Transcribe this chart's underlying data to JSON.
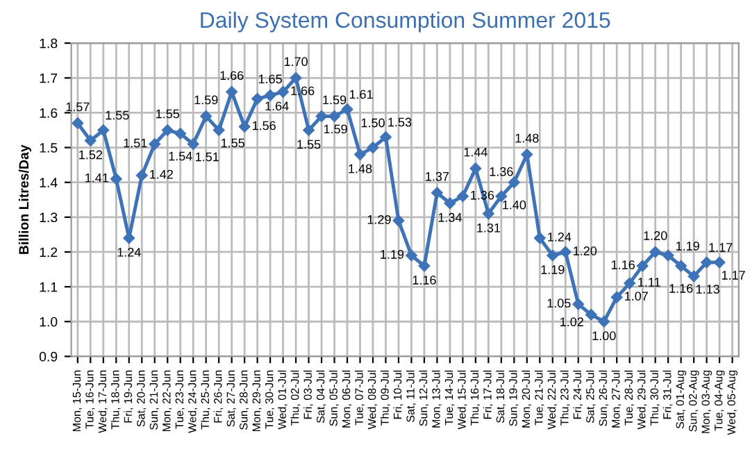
{
  "chart_data": {
    "type": "line",
    "title": "Daily System Consumption Summer 2015",
    "ylabel": "Billion Litres/Day",
    "categories": [
      "Mon, 15-Jun",
      "Tue, 16-Jun",
      "Wed, 17-Jun",
      "Thu, 18-Jun",
      "Fri, 19-Jun",
      "Sat, 20-Jun",
      "Sun, 21-Jun",
      "Mon, 22-Jun",
      "Tue, 23-Jun",
      "Wed, 24-Jun",
      "Thu, 25-Jun",
      "Fri, 26-Jun",
      "Sat, 27-Jun",
      "Sun, 28-Jun",
      "Mon, 29-Jun",
      "Tue, 30-Jun",
      "Wed, 01-Jul",
      "Thu, 02-Jul",
      "Fri, 03-Jul",
      "Sat, 04-Jul",
      "Sun, 05-Jul",
      "Mon, 06-Jul",
      "Tue, 07-Jul",
      "Wed, 08-Jul",
      "Thu, 09-Jul",
      "Fri, 10-Jul",
      "Sat, 11-Jul",
      "Sun, 12-Jul",
      "Mon, 13-Jul",
      "Tue, 14-Jul",
      "Wed, 15-Jul",
      "Thu, 16-Jul",
      "Fri, 17-Jul",
      "Sat, 18-Jul",
      "Sun, 19-Jul",
      "Mon, 20-Jul",
      "Tue, 21-Jul",
      "Wed, 22-Jul",
      "Thu, 23-Jul",
      "Fri, 24-Jul",
      "Sat, 25-Jul",
      "Sun, 26-Jul",
      "Mon, 27-Jul",
      "Tue, 28-Jul",
      "Wed, 29-Jul",
      "Thu, 30-Jul",
      "Fri, 31-Jul",
      "Sat, 01-Aug",
      "Sun, 02-Aug",
      "Mon, 03-Aug",
      "Tue, 04-Aug",
      "Wed, 05-Aug"
    ],
    "series": [
      {
        "color": "#3f73b8",
        "values": [
          1.57,
          1.52,
          1.55,
          1.41,
          1.24,
          1.42,
          1.51,
          1.55,
          1.54,
          1.51,
          1.59,
          1.55,
          1.66,
          1.56,
          1.64,
          1.65,
          1.66,
          1.7,
          1.55,
          1.59,
          1.59,
          1.61,
          1.48,
          1.5,
          1.53,
          1.29,
          1.19,
          1.16,
          1.37,
          1.34,
          1.36,
          1.44,
          1.31,
          1.36,
          1.4,
          1.48,
          1.24,
          1.19,
          1.2,
          1.05,
          1.02,
          1.0,
          1.07,
          1.11,
          1.16,
          1.2,
          1.19,
          1.16,
          1.13,
          1.17,
          1.17,
          null
        ],
        "value_labels": [
          "1.57",
          "1.52",
          "1.55",
          "1.41",
          "1.24",
          "1.42",
          "1.51",
          "1.55",
          "1.54",
          "1.51",
          "1.59",
          "1.55",
          "1.66",
          "1.56",
          "1.64",
          "1.65",
          "1.66",
          "1.70",
          "1.55",
          "1.59",
          "1.59",
          "1.61",
          "1.48",
          "1.50",
          "1.53",
          "1.29",
          "1.19",
          "1.16",
          "1.37",
          "1.34",
          "1.36",
          "1.44",
          "1.31",
          "1.36",
          "1.40",
          "1.48",
          "1.24",
          "1.19",
          "1.20",
          "1.05",
          "1.02",
          "1.00",
          "1.07",
          "1.11",
          "1.16",
          "1.20",
          "1.19",
          "1.16",
          "1.13",
          "1.17",
          "1.17",
          null
        ]
      }
    ],
    "ylim": [
      0.9,
      1.8
    ],
    "yticks": [
      {
        "value": 0.9,
        "label": "0.9"
      },
      {
        "value": 1.0,
        "label": "1.0"
      },
      {
        "value": 1.1,
        "label": "1.1"
      },
      {
        "value": 1.2,
        "label": "1.2"
      },
      {
        "value": 1.3,
        "label": "1.3"
      },
      {
        "value": 1.4,
        "label": "1.4"
      },
      {
        "value": 1.5,
        "label": "1.5"
      },
      {
        "value": 1.6,
        "label": "1.6"
      },
      {
        "value": 1.7,
        "label": "1.7"
      },
      {
        "value": 1.8,
        "label": "1.8"
      }
    ],
    "grid": true,
    "marker": "diamond",
    "line_style": "solid"
  }
}
